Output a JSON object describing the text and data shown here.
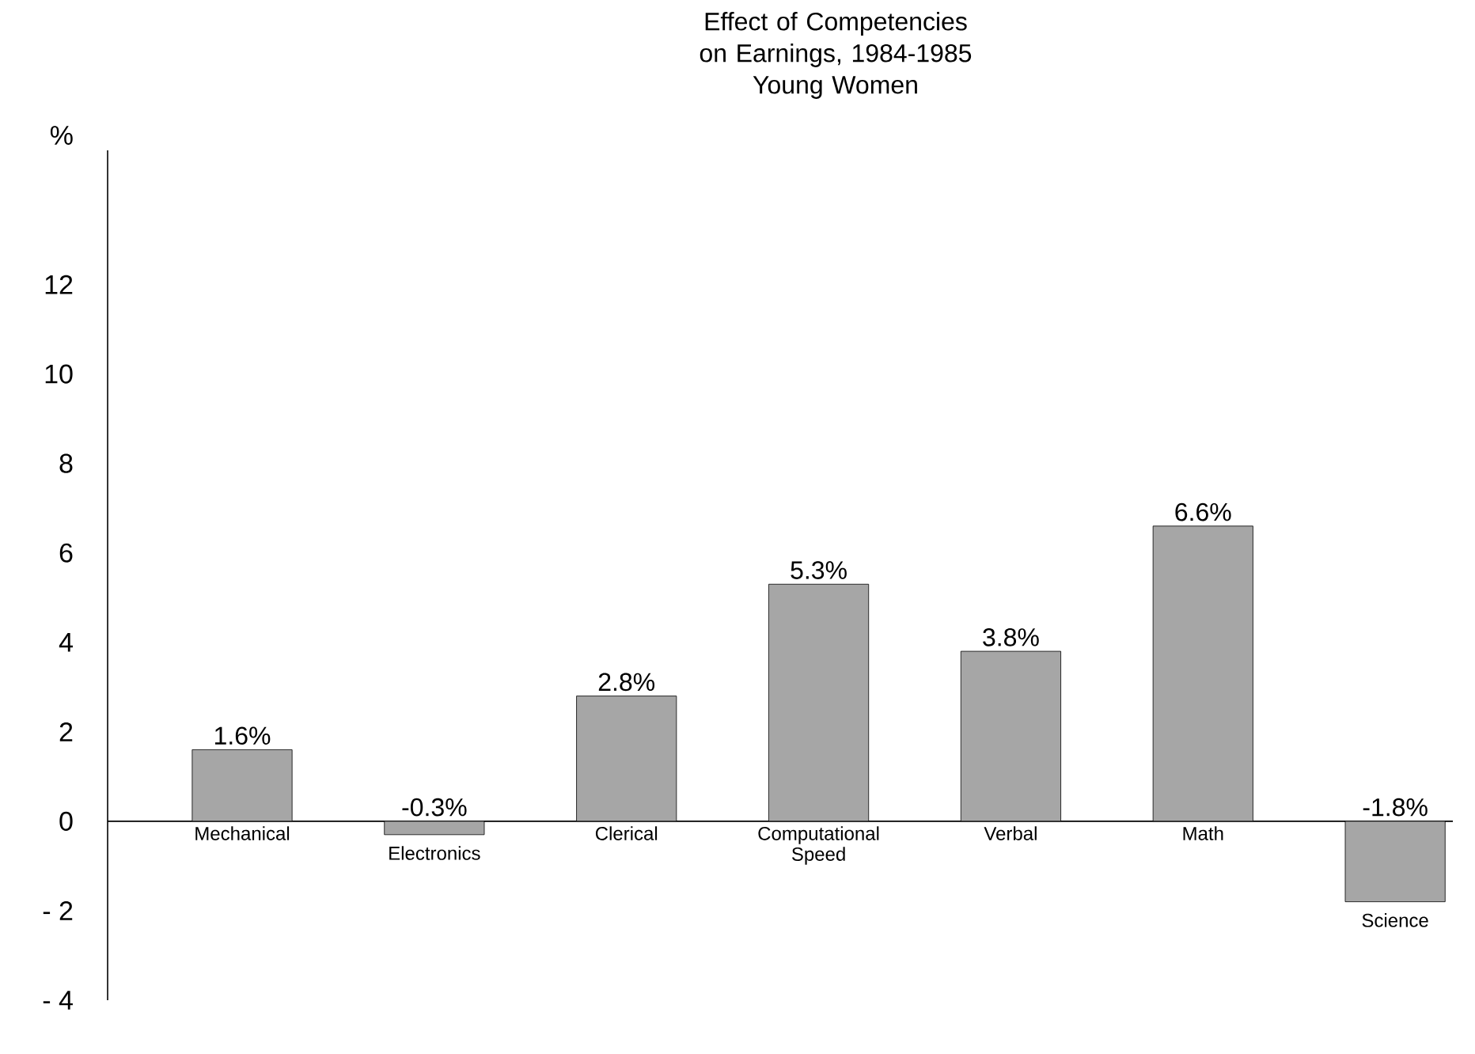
{
  "chart_data": {
    "type": "bar",
    "title": "Effect of Competencies on Earnings, 1984-1985",
    "subtitle": "Young Women",
    "ylabel": "%",
    "categories": [
      "Mechanical",
      "Electronics",
      "Clerical",
      "Computational Speed",
      "Verbal",
      "Math",
      "Science"
    ],
    "values": [
      1.6,
      -0.3,
      2.8,
      5.3,
      3.8,
      6.6,
      -1.8
    ],
    "value_labels": [
      "1.6%",
      "-0.3%",
      "2.8%",
      "5.3%",
      "3.8%",
      "6.6%",
      "-1.8%"
    ],
    "color": "#a6a6a6",
    "ylim": [
      -4,
      15
    ],
    "yticks": [
      {
        "value": -4,
        "label": "- 4"
      },
      {
        "value": -2,
        "label": "- 2"
      },
      0,
      2,
      4,
      6,
      8,
      10,
      12
    ],
    "grid": false
  }
}
